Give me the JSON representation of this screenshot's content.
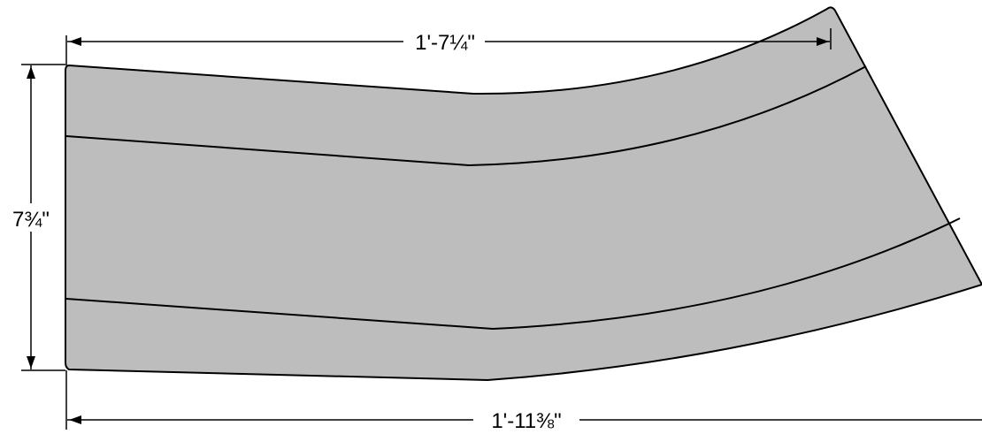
{
  "dimensions": {
    "top_width": "1'-7¼\"",
    "bottom_width": "1'-11⅜\"",
    "height": "7¾\""
  },
  "colors": {
    "panel_fill": "#bdbdbd",
    "outline": "#000000",
    "background": "#ffffff"
  }
}
